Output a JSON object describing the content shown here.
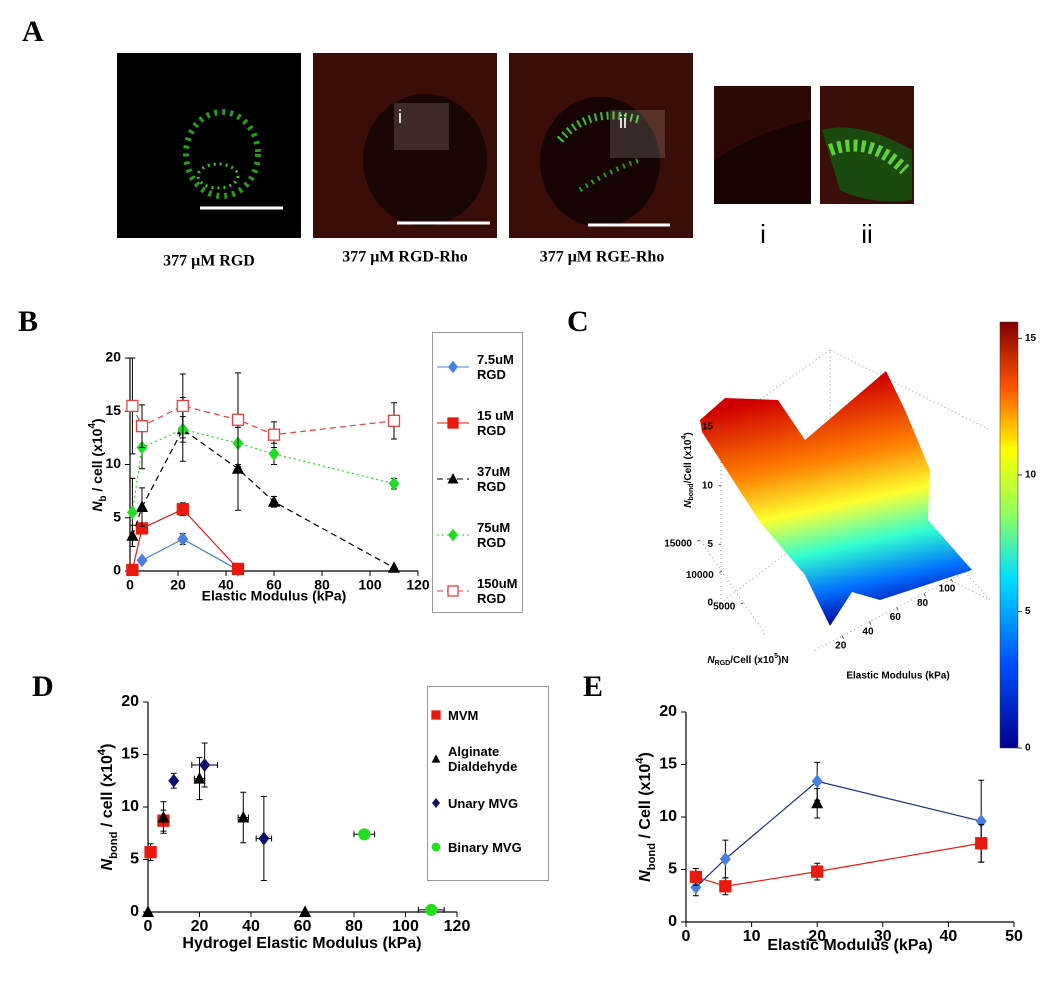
{
  "panel_a": {
    "label": "A",
    "captions": [
      "377 μM RGD",
      "377 μM RGD-Rho",
      "377 μM RGE-Rho"
    ],
    "roi_labels": [
      "i",
      "ii"
    ],
    "insets": [
      "i",
      "ii"
    ]
  },
  "chart_data": [
    {
      "type": "line",
      "panel_label": "B",
      "xlabel": "Elastic Modulus (kPa)",
      "ylabel": [
        "N",
        "b",
        " / cell (x10",
        "4",
        ")"
      ],
      "ylabel_style": [
        "italic",
        "sub",
        "normal",
        "sup",
        "normal"
      ],
      "xlim": [
        0,
        120
      ],
      "xticks": [
        0,
        20,
        40,
        60,
        80,
        100,
        120
      ],
      "ylim": [
        0,
        20
      ],
      "yticks": [
        0,
        5,
        10,
        15,
        20
      ],
      "legend": "right",
      "series": [
        {
          "name": "7.5uM RGD",
          "color": "#4a7fe0",
          "marker": "diamond",
          "dash": "solid",
          "x": [
            5,
            22,
            45
          ],
          "values": [
            1,
            3,
            0.1
          ],
          "yerr": [
            0.2,
            0.5,
            0
          ]
        },
        {
          "name": "15 uM RGD",
          "color": "#e8190f",
          "marker": "square",
          "dash": "solid",
          "x": [
            1,
            5,
            22,
            45
          ],
          "values": [
            0.1,
            4,
            5.8,
            0.2
          ],
          "yerr": [
            0,
            0,
            0.6,
            0
          ]
        },
        {
          "name": "37uM RGD",
          "color": "#000000",
          "marker": "triangle",
          "dash": "dashed",
          "x": [
            1,
            5,
            22,
            45,
            60,
            110
          ],
          "values": [
            3.3,
            6,
            13.3,
            9.6,
            6.5,
            0.3
          ],
          "yerr": [
            1,
            1.8,
            1.2,
            3.9,
            0.5,
            0
          ]
        },
        {
          "name": "75uM RGD",
          "color": "#22dd22",
          "marker": "diamond",
          "dash": "dotted",
          "x": [
            1,
            5,
            22,
            45,
            60,
            110
          ],
          "values": [
            5.5,
            11.6,
            13.3,
            12,
            11,
            8.2
          ],
          "yerr": [
            3.2,
            2,
            3,
            2,
            1,
            0.5
          ]
        },
        {
          "name": "150uM RGD",
          "color": "#e84040",
          "marker": "open-square",
          "dash": "dashed",
          "x": [
            1,
            5,
            22,
            45,
            60,
            110
          ],
          "values": [
            15.5,
            13.6,
            15.5,
            14.2,
            12.8,
            14.1
          ],
          "yerr": [
            4.5,
            2,
            3,
            4.4,
            1.2,
            1.7
          ]
        }
      ]
    },
    {
      "type": "surface",
      "panel_label": "C",
      "xlabel": "Elastic Modulus (kPa)",
      "ylabel": [
        "N",
        "RGD",
        "/Cell (x10",
        "5",
        ")N"
      ],
      "ylabel_style": [
        "italic",
        "sub",
        "normal",
        "sup",
        "normal"
      ],
      "zlabel": [
        "N",
        "bond",
        "/Cell (x10",
        "4",
        ")"
      ],
      "zlabel_style": [
        "italic",
        "sub",
        "normal",
        "sup",
        "normal"
      ],
      "xlim": [
        0,
        110
      ],
      "xticks": [
        20,
        40,
        60,
        80,
        100
      ],
      "ylim": [
        0,
        15000
      ],
      "yticks": [
        5000,
        10000,
        15000
      ],
      "zlim": [
        0,
        15
      ],
      "zticks": [
        0,
        5,
        10,
        15
      ],
      "colorbar": {
        "lim": [
          0,
          15.6
        ],
        "ticks": [
          0,
          5,
          10,
          15
        ]
      }
    },
    {
      "type": "scatter",
      "panel_label": "D",
      "xlabel": "Hydrogel Elastic Modulus (kPa)",
      "ylabel": [
        "N",
        "bond",
        " / cell (x10",
        "4",
        ")"
      ],
      "ylabel_style": [
        "italic",
        "sub",
        "normal",
        "sup",
        "normal"
      ],
      "xlim": [
        0,
        120
      ],
      "xticks": [
        0,
        20,
        40,
        60,
        80,
        100,
        120
      ],
      "ylim": [
        0,
        20
      ],
      "yticks": [
        0,
        5,
        10,
        15,
        20
      ],
      "legend": "right",
      "series": [
        {
          "name": "MVM",
          "color": "#e8190f",
          "marker": "square",
          "dash": "none",
          "x": [
            1,
            6
          ],
          "values": [
            5.7,
            8.7
          ],
          "yerr": [
            0.8,
            1
          ],
          "xerr": [
            0,
            0
          ]
        },
        {
          "name": "Alginate Dialdehyde",
          "color": "#000000",
          "marker": "triangle",
          "dash": "none",
          "x": [
            0,
            6,
            20,
            37,
            61
          ],
          "values": [
            0,
            9,
            12.7,
            9,
            0
          ],
          "yerr": [
            0,
            1.5,
            2,
            2.4,
            0
          ],
          "xerr": [
            0,
            0,
            2,
            2,
            0
          ]
        },
        {
          "name": "Unary MVG",
          "color": "#10106e",
          "marker": "diamond",
          "dash": "none",
          "x": [
            10,
            22,
            45
          ],
          "values": [
            12.5,
            14,
            7
          ],
          "yerr": [
            0.7,
            2.1,
            4
          ],
          "xerr": [
            0,
            5,
            3
          ]
        },
        {
          "name": "Binary MVG",
          "color": "#22dd22",
          "marker": "circle",
          "dash": "none",
          "x": [
            84,
            110
          ],
          "values": [
            7.4,
            0.2
          ],
          "yerr": [
            0,
            0
          ],
          "xerr": [
            4,
            5
          ]
        }
      ]
    },
    {
      "type": "line",
      "panel_label": "E",
      "xlabel": "Elastic Modulus (kPa)",
      "ylabel": [
        "N",
        "bond",
        " / Cell (x10",
        "4",
        ")"
      ],
      "ylabel_style": [
        "italic",
        "sub",
        "normal",
        "sup",
        "normal"
      ],
      "xlim": [
        0,
        50
      ],
      "xticks": [
        0,
        10,
        20,
        30,
        40,
        50
      ],
      "ylim": [
        0,
        20
      ],
      "yticks": [
        0,
        5,
        10,
        15,
        20
      ],
      "series": [
        {
          "color": "#4a7fe0",
          "line_color": "#1a2a8a",
          "marker": "diamond",
          "dash": "solid",
          "x": [
            1.5,
            6,
            20,
            45
          ],
          "values": [
            3.3,
            6,
            13.4,
            9.6
          ],
          "yerr": [
            0.8,
            1.8,
            1.8,
            3.9
          ]
        },
        {
          "color": "#e8190f",
          "marker": "square",
          "dash": "solid",
          "x": [
            1.5,
            6,
            20,
            45
          ],
          "values": [
            4.3,
            3.4,
            4.8,
            7.5
          ],
          "yerr": [
            0.8,
            0.8,
            0.8,
            1.8
          ]
        },
        {
          "color": "#000000",
          "marker": "triangle",
          "dash": "none",
          "x": [
            20
          ],
          "values": [
            11.3
          ],
          "yerr": [
            1.4
          ]
        }
      ]
    }
  ]
}
